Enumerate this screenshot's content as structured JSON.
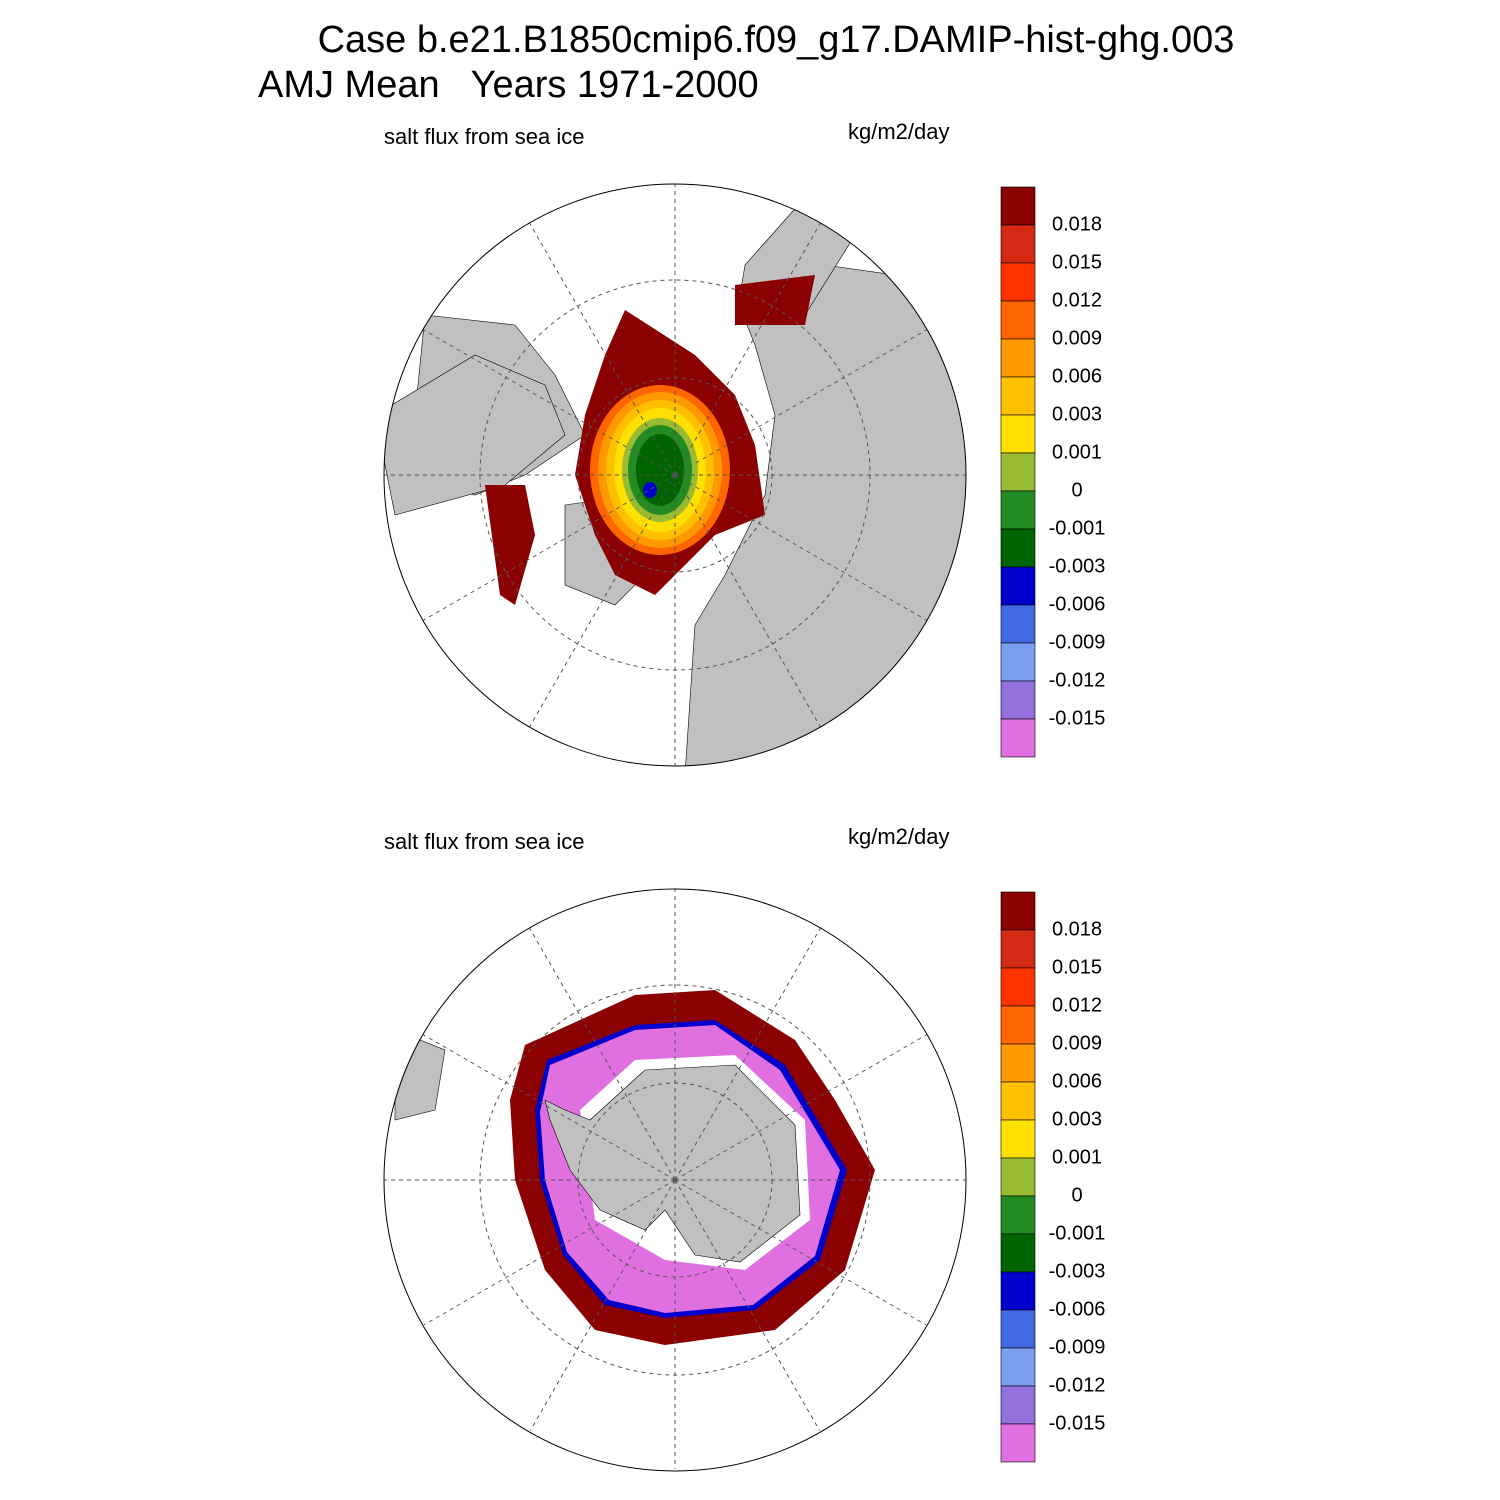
{
  "header": {
    "title": "Case b.e21.B1850cmip6.f09_g17.DAMIP-hist-ghg.003",
    "subtitle": "AMJ Mean   Years 1971-2000"
  },
  "panels": [
    {
      "variable": "salt flux from sea ice",
      "units": "kg/m2/day",
      "colorbar": {
        "colors": [
          "#8b0000",
          "#d42a14",
          "#ff3300",
          "#ff6600",
          "#ff9900",
          "#ffc000",
          "#ffe000",
          "#99bb33",
          "#228b22",
          "#006400",
          "#0000cd",
          "#4169e1",
          "#7b9ef0",
          "#9370db",
          "#e070e0"
        ],
        "labels": [
          "0.018",
          "0.015",
          "0.012",
          "0.009",
          "0.006",
          "0.003",
          "0.001",
          "0",
          "-0.001",
          "-0.003",
          "-0.006",
          "-0.009",
          "-0.012",
          "-0.015"
        ]
      }
    },
    {
      "variable": "salt flux from sea ice",
      "units": "kg/m2/day",
      "colorbar": {
        "colors": [
          "#8b0000",
          "#d42a14",
          "#ff3300",
          "#ff6600",
          "#ff9900",
          "#ffc000",
          "#ffe000",
          "#99bb33",
          "#228b22",
          "#006400",
          "#0000cd",
          "#4169e1",
          "#7b9ef0",
          "#9370db",
          "#e070e0"
        ],
        "labels": [
          "0.018",
          "0.015",
          "0.012",
          "0.009",
          "0.006",
          "0.003",
          "0.001",
          "0",
          "-0.001",
          "-0.003",
          "-0.006",
          "-0.009",
          "-0.012",
          "-0.015"
        ]
      }
    }
  ]
}
